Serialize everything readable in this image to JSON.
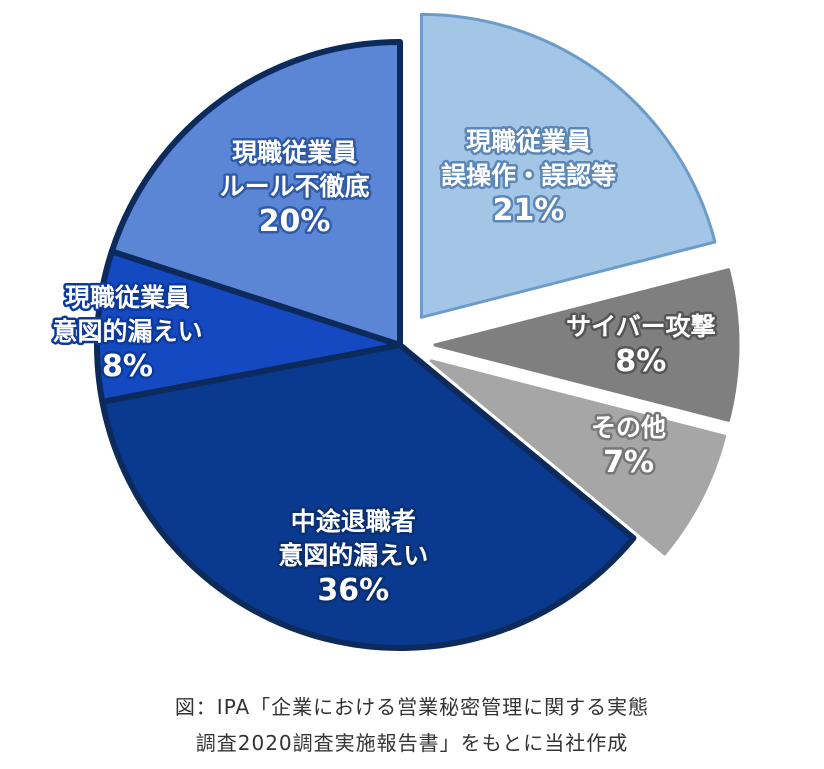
{
  "chart_data": {
    "type": "pie",
    "title": "",
    "slices": [
      {
        "label_lines": [
          "現職従業員",
          "誤操作・誤認等"
        ],
        "value": 21,
        "value_label": "21%",
        "color": "#a3c6e6",
        "border": "#6b9cc9",
        "exploded": true,
        "label_fill": "#ffffff",
        "label_stroke": "#5b86b5"
      },
      {
        "label_lines": [
          "サイバー攻撃"
        ],
        "value": 8,
        "value_label": "8%",
        "color": "#7f7f7f",
        "border": "#7f7f7f",
        "exploded": true,
        "label_fill": "#ffffff",
        "label_stroke": "#555555"
      },
      {
        "label_lines": [
          "その他"
        ],
        "value": 7,
        "value_label": "7%",
        "color": "#a6a6a6",
        "border": "#a6a6a6",
        "exploded": true,
        "label_fill": "#ffffff",
        "label_stroke": "#777777"
      },
      {
        "label_lines": [
          "中途退職者",
          "意図的漏えい"
        ],
        "value": 36,
        "value_label": "36%",
        "color": "#0a3a90",
        "border": "#0d2a5c",
        "exploded": false,
        "label_fill": "#ffffff",
        "label_stroke": "#0a2f72"
      },
      {
        "label_lines": [
          "現職従業員",
          "意図的漏えい"
        ],
        "value": 8,
        "value_label": "8%",
        "color": "#1449c2",
        "border": "#0d2a5c",
        "exploded": false,
        "label_fill": "#ffffff",
        "label_stroke": "#0d3a9a"
      },
      {
        "label_lines": [
          "現職従業員",
          "ルール不徹底"
        ],
        "value": 20,
        "value_label": "20%",
        "color": "#5b86d6",
        "border": "#0d2a5c",
        "exploded": false,
        "label_fill": "#ffffff",
        "label_stroke": "#2f5aa8"
      }
    ]
  },
  "caption": {
    "line1": "図：IPA「企業における営業秘密管理に関する実態",
    "line2": "調査2020調査実施報告書」をもとに当社作成"
  }
}
